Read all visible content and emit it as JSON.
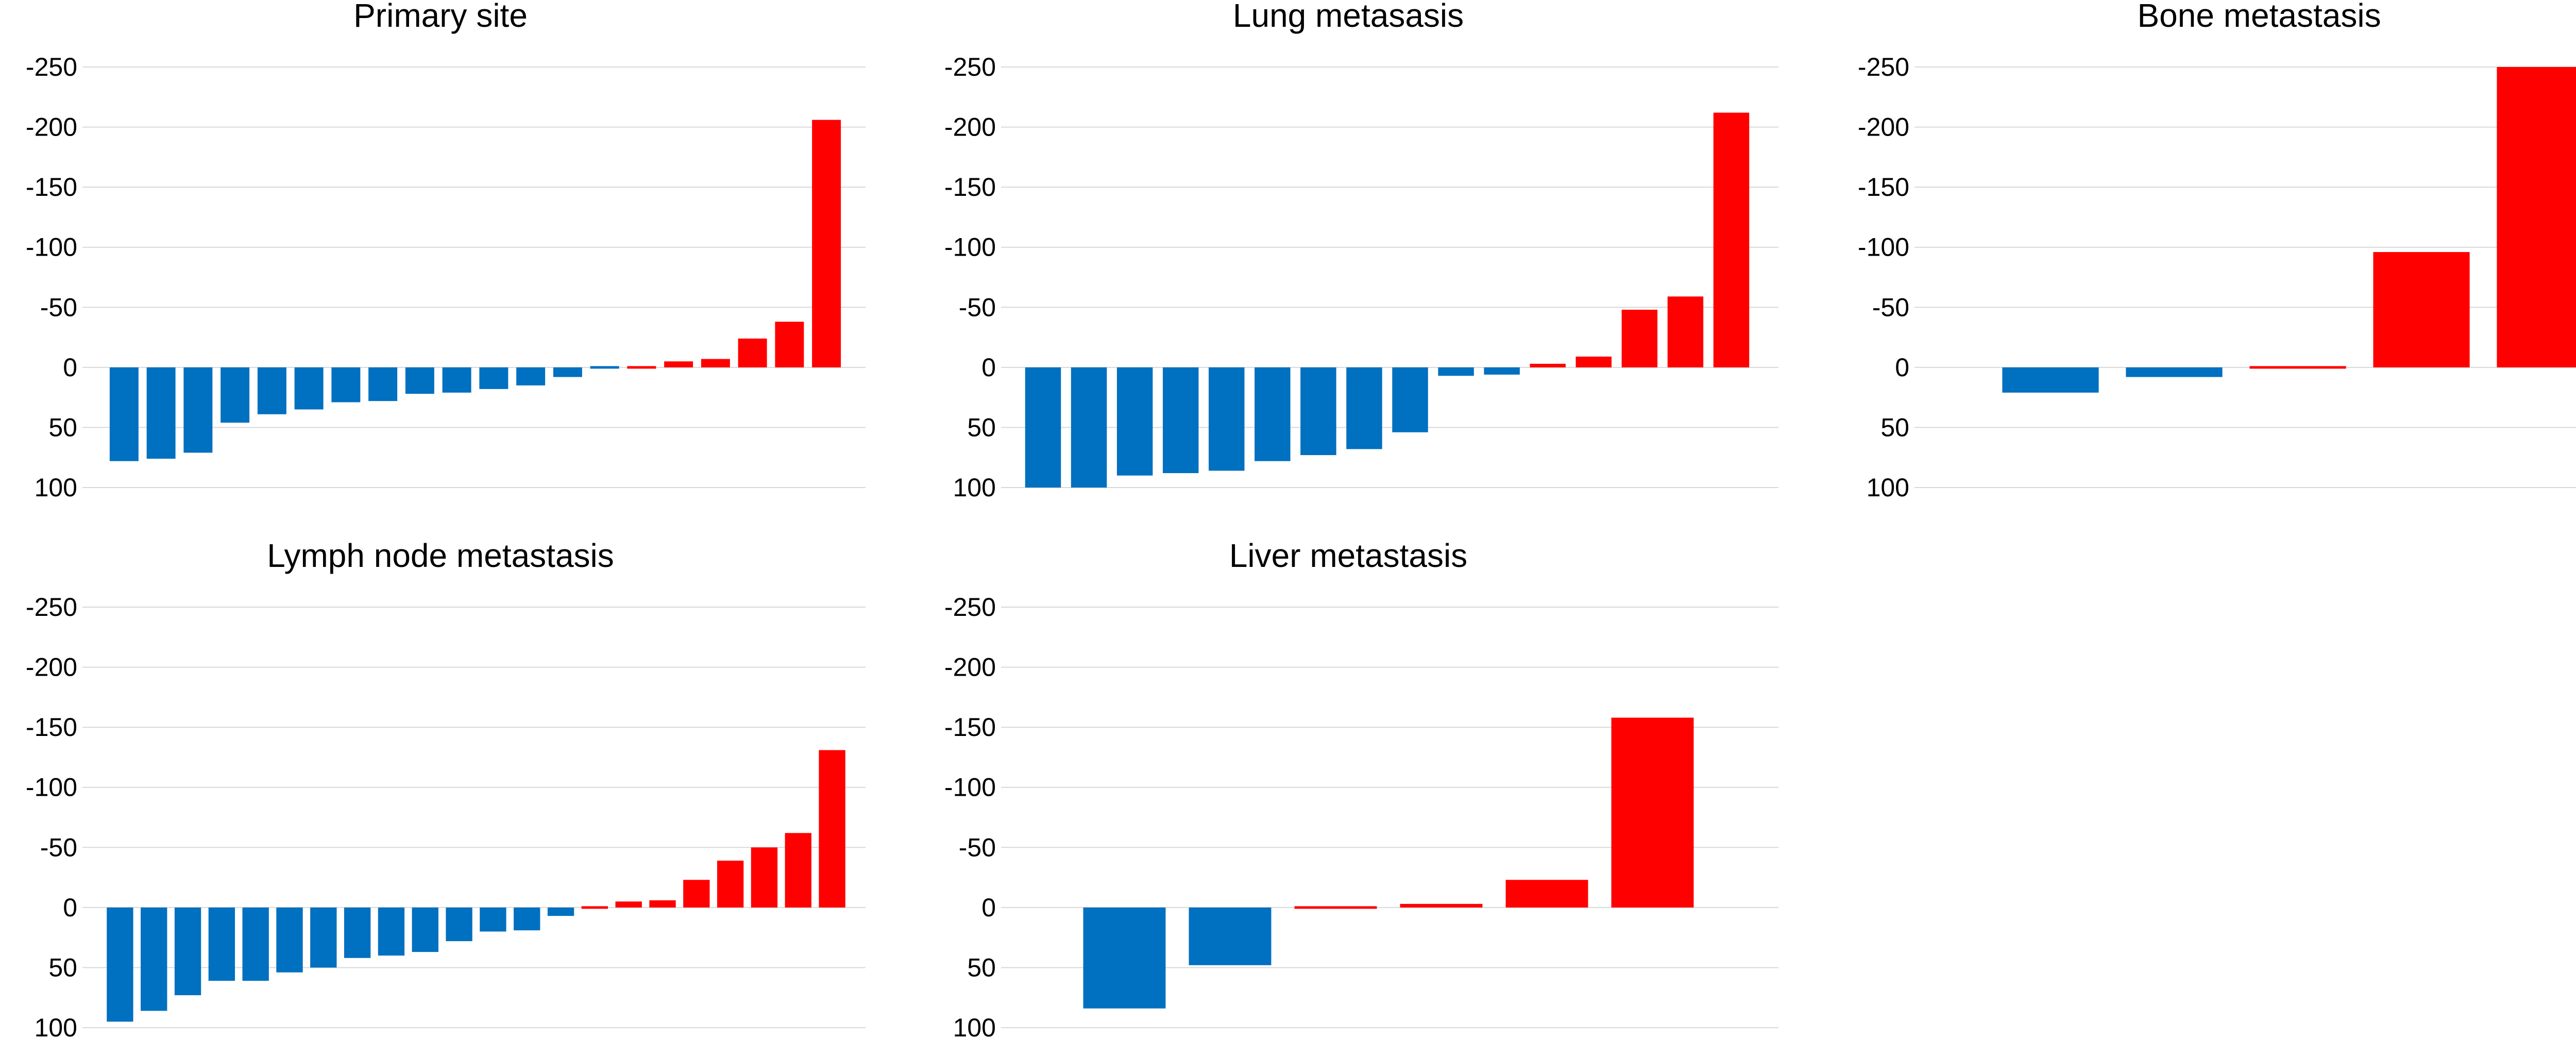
{
  "chart_data": [
    {
      "type": "bar",
      "title": "Primary site",
      "xlabel": "",
      "ylabel": "",
      "ylim": [
        100,
        -250
      ],
      "ytick_labels": [
        "-250",
        "-200",
        "-150",
        "-100",
        "-50",
        "0",
        "50",
        "100"
      ],
      "grid": true,
      "values": [
        78,
        76,
        71,
        46,
        39,
        35,
        29,
        28,
        22,
        21,
        18,
        15,
        8,
        1,
        -2,
        -5,
        -7,
        -24,
        -38,
        -206
      ],
      "colors": [
        "#0070c0",
        "#0070c0",
        "#0070c0",
        "#0070c0",
        "#0070c0",
        "#0070c0",
        "#0070c0",
        "#0070c0",
        "#0070c0",
        "#0070c0",
        "#0070c0",
        "#0070c0",
        "#0070c0",
        "#0070c0",
        "#ff0000",
        "#ff0000",
        "#ff0000",
        "#ff0000",
        "#ff0000",
        "#ff0000"
      ]
    },
    {
      "type": "bar",
      "title": "Lung metasasis",
      "xlabel": "",
      "ylabel": "",
      "ylim": [
        100,
        -250
      ],
      "ytick_labels": [
        "-250",
        "-200",
        "-150",
        "-100",
        "-50",
        "0",
        "50",
        "100"
      ],
      "grid": true,
      "values": [
        100,
        100,
        90,
        88,
        86,
        78,
        73,
        68,
        54,
        7,
        6,
        -3,
        -9,
        -48,
        -59,
        -212
      ],
      "colors": [
        "#0070c0",
        "#0070c0",
        "#0070c0",
        "#0070c0",
        "#0070c0",
        "#0070c0",
        "#0070c0",
        "#0070c0",
        "#0070c0",
        "#0070c0",
        "#0070c0",
        "#ff0000",
        "#ff0000",
        "#ff0000",
        "#ff0000",
        "#ff0000"
      ]
    },
    {
      "type": "bar",
      "title": "Bone metastasis",
      "xlabel": "",
      "ylabel": "",
      "ylim": [
        100,
        -250
      ],
      "ytick_labels": [
        "-250",
        "-200",
        "-150",
        "-100",
        "-50",
        "0",
        "50",
        "100"
      ],
      "grid": true,
      "values": [
        21,
        8,
        -2,
        -96,
        -250
      ],
      "colors": [
        "#0070c0",
        "#0070c0",
        "#ff0000",
        "#ff0000",
        "#ff0000"
      ]
    },
    {
      "type": "bar",
      "title": "Lymph node metastasis",
      "xlabel": "",
      "ylabel": "",
      "ylim": [
        100,
        -250
      ],
      "ytick_labels": [
        "-250",
        "-200",
        "-150",
        "-100",
        "-50",
        "0",
        "50",
        "100"
      ],
      "grid": true,
      "values": [
        95,
        86,
        73,
        61,
        61,
        54,
        50,
        42,
        40,
        37,
        28,
        20,
        19,
        7,
        -2,
        -5,
        -6,
        -23,
        -39,
        -50,
        -62,
        -131
      ],
      "colors": [
        "#0070c0",
        "#0070c0",
        "#0070c0",
        "#0070c0",
        "#0070c0",
        "#0070c0",
        "#0070c0",
        "#0070c0",
        "#0070c0",
        "#0070c0",
        "#0070c0",
        "#0070c0",
        "#0070c0",
        "#0070c0",
        "#ff0000",
        "#ff0000",
        "#ff0000",
        "#ff0000",
        "#ff0000",
        "#ff0000",
        "#ff0000",
        "#ff0000"
      ]
    },
    {
      "type": "bar",
      "title": "Liver metastasis",
      "xlabel": "",
      "ylabel": "",
      "ylim": [
        100,
        -250
      ],
      "ytick_labels": [
        "-250",
        "-200",
        "-150",
        "-100",
        "-50",
        "0",
        "50",
        "100"
      ],
      "grid": true,
      "values": [
        84,
        48,
        -2,
        -3,
        -23,
        -158
      ],
      "colors": [
        "#0070c0",
        "#0070c0",
        "#ff0000",
        "#ff0000",
        "#ff0000",
        "#ff0000"
      ]
    }
  ]
}
